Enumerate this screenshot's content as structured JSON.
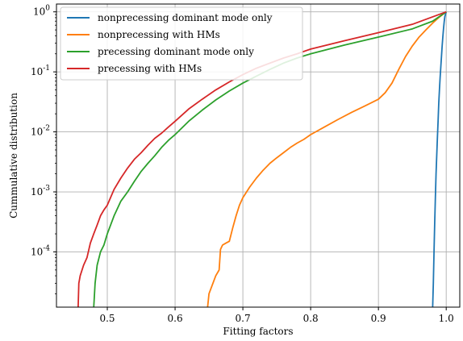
{
  "chart_data": {
    "type": "line",
    "title": "",
    "xlabel": "Fitting factors",
    "ylabel": "Cummulative distribution",
    "xlim": [
      0.425,
      1.02
    ],
    "ylim": [
      1.2e-05,
      1.35
    ],
    "yscale": "log",
    "grid": true,
    "legend_position": "top-left",
    "x_ticks": [
      0.5,
      0.6,
      0.7,
      0.8,
      0.9,
      1.0
    ],
    "x_tick_labels": [
      "0.5",
      "0.6",
      "0.7",
      "0.8",
      "0.9",
      "1.0"
    ],
    "y_ticks": [
      0.0001,
      0.001,
      0.01,
      0.1,
      1
    ],
    "y_tick_labels": [
      "10^-4",
      "10^-3",
      "10^-2",
      "10^-1",
      "10^0"
    ],
    "series": [
      {
        "name": "nonprecessing dominant mode only",
        "color": "#1f77b4",
        "x": [
          0.98,
          0.981,
          0.982,
          0.983,
          0.984,
          0.985,
          0.986,
          0.987,
          0.988,
          0.989,
          0.99,
          0.991,
          0.992,
          0.993,
          0.994,
          0.995,
          0.996,
          0.997,
          0.998,
          1.0
        ],
        "y": [
          1.2e-05,
          3e-05,
          0.0001,
          0.0003,
          0.0008,
          0.002,
          0.004,
          0.008,
          0.015,
          0.03,
          0.05,
          0.08,
          0.12,
          0.18,
          0.27,
          0.38,
          0.52,
          0.68,
          0.84,
          1.0
        ]
      },
      {
        "name": "nonprecessing with HMs",
        "color": "#ff7f0e",
        "x": [
          0.648,
          0.65,
          0.66,
          0.665,
          0.667,
          0.67,
          0.675,
          0.68,
          0.685,
          0.69,
          0.695,
          0.7,
          0.71,
          0.72,
          0.73,
          0.74,
          0.75,
          0.76,
          0.77,
          0.78,
          0.79,
          0.8,
          0.82,
          0.84,
          0.86,
          0.88,
          0.9,
          0.91,
          0.92,
          0.93,
          0.94,
          0.95,
          0.96,
          0.97,
          0.98,
          0.99,
          1.0
        ],
        "y": [
          1.2e-05,
          2e-05,
          4e-05,
          5e-05,
          0.00011,
          0.00013,
          0.00014,
          0.00015,
          0.00025,
          0.0004,
          0.0006,
          0.0008,
          0.0012,
          0.0017,
          0.0023,
          0.003,
          0.0037,
          0.0045,
          0.0055,
          0.0065,
          0.0075,
          0.009,
          0.012,
          0.016,
          0.021,
          0.027,
          0.035,
          0.045,
          0.065,
          0.11,
          0.18,
          0.27,
          0.38,
          0.5,
          0.65,
          0.82,
          1.0
        ]
      },
      {
        "name": "precessing dominant mode only",
        "color": "#2ca02c",
        "x": [
          0.48,
          0.482,
          0.485,
          0.49,
          0.495,
          0.5,
          0.51,
          0.52,
          0.53,
          0.54,
          0.55,
          0.56,
          0.57,
          0.58,
          0.59,
          0.6,
          0.62,
          0.64,
          0.66,
          0.68,
          0.7,
          0.72,
          0.74,
          0.76,
          0.78,
          0.8,
          0.85,
          0.9,
          0.95,
          0.98,
          1.0
        ],
        "y": [
          1.2e-05,
          3e-05,
          6e-05,
          0.0001,
          0.00013,
          0.0002,
          0.0004,
          0.0007,
          0.001,
          0.0015,
          0.0022,
          0.003,
          0.004,
          0.0055,
          0.0072,
          0.009,
          0.015,
          0.023,
          0.034,
          0.048,
          0.065,
          0.085,
          0.11,
          0.14,
          0.17,
          0.2,
          0.28,
          0.38,
          0.52,
          0.7,
          1.0
        ]
      },
      {
        "name": "precessing with HMs",
        "color": "#d62728",
        "x": [
          0.457,
          0.458,
          0.46,
          0.465,
          0.47,
          0.475,
          0.48,
          0.485,
          0.49,
          0.495,
          0.5,
          0.51,
          0.52,
          0.53,
          0.54,
          0.55,
          0.56,
          0.57,
          0.58,
          0.59,
          0.6,
          0.62,
          0.64,
          0.66,
          0.68,
          0.7,
          0.72,
          0.74,
          0.76,
          0.78,
          0.8,
          0.85,
          0.9,
          0.95,
          1.0
        ],
        "y": [
          1.2e-05,
          3e-05,
          4e-05,
          6e-05,
          8e-05,
          0.00014,
          0.0002,
          0.00028,
          0.0004,
          0.0005,
          0.0006,
          0.0011,
          0.0017,
          0.0025,
          0.0035,
          0.0045,
          0.006,
          0.0078,
          0.0095,
          0.012,
          0.015,
          0.024,
          0.035,
          0.05,
          0.068,
          0.09,
          0.115,
          0.14,
          0.17,
          0.2,
          0.24,
          0.33,
          0.45,
          0.62,
          1.0
        ]
      }
    ]
  }
}
